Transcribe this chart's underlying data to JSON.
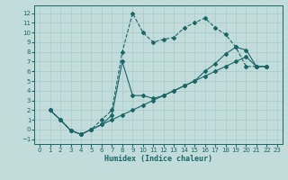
{
  "xlabel": "Humidex (Indice chaleur)",
  "xlim": [
    -0.5,
    23.5
  ],
  "ylim": [
    -1.5,
    12.8
  ],
  "xticks": [
    0,
    1,
    2,
    3,
    4,
    5,
    6,
    7,
    8,
    9,
    10,
    11,
    12,
    13,
    14,
    15,
    16,
    17,
    18,
    19,
    20,
    21,
    22,
    23
  ],
  "yticks": [
    -1,
    0,
    1,
    2,
    3,
    4,
    5,
    6,
    7,
    8,
    9,
    10,
    11,
    12
  ],
  "background_color": "#c2dcdc",
  "grid_color": "#a8c8c8",
  "line_color": "#1a6666",
  "line_dashed": {
    "x": [
      1,
      2,
      3,
      4,
      5,
      6,
      7,
      8,
      9,
      10,
      11,
      12,
      13,
      14,
      15,
      16,
      17,
      18,
      19,
      20,
      21,
      22
    ],
    "y": [
      2.0,
      1.0,
      -0.1,
      -0.5,
      0.0,
      1.0,
      2.0,
      8.0,
      12.0,
      10.0,
      9.0,
      9.3,
      9.5,
      10.5,
      11.0,
      11.5,
      10.5,
      9.8,
      8.5,
      6.5,
      6.5,
      6.5
    ]
  },
  "line_solid_lower": {
    "x": [
      1,
      2,
      3,
      4,
      5,
      6,
      7,
      8,
      9,
      10,
      11,
      12,
      13,
      14,
      15,
      16,
      17,
      18,
      19,
      20,
      21,
      22
    ],
    "y": [
      2.0,
      1.0,
      -0.1,
      -0.5,
      0.0,
      0.5,
      1.0,
      1.5,
      2.0,
      2.5,
      3.0,
      3.5,
      4.0,
      4.5,
      5.0,
      5.5,
      6.0,
      6.5,
      7.0,
      7.5,
      6.5,
      6.5
    ]
  },
  "line_solid_mid": {
    "x": [
      1,
      2,
      3,
      4,
      5,
      6,
      7,
      8,
      9,
      10,
      11,
      12,
      13,
      14,
      15,
      16,
      17,
      18,
      19,
      20,
      21,
      22
    ],
    "y": [
      2.0,
      1.0,
      -0.1,
      -0.5,
      0.0,
      0.5,
      1.5,
      7.0,
      3.5,
      3.5,
      3.2,
      3.5,
      4.0,
      4.5,
      5.0,
      6.0,
      6.8,
      7.8,
      8.5,
      8.2,
      6.5,
      6.5
    ]
  }
}
